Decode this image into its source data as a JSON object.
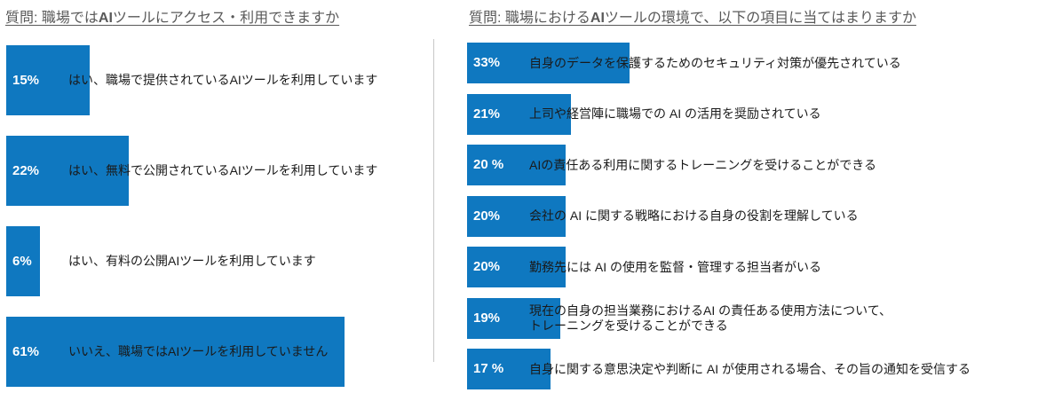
{
  "chart_data": [
    {
      "type": "bar",
      "orientation": "horizontal",
      "title": "質問: 職場ではAIツールにアクセス・利用できますか",
      "title_bold_term": "AI",
      "categories": [
        "はい、職場で提供されているAIツールを利用しています",
        "はい、無料で公開されているAIツールを利用しています",
        "はい、有料の公開AIツールを利用しています",
        "いいえ、職場ではAIツールを利用していません"
      ],
      "values": [
        15,
        22,
        6,
        61
      ],
      "value_labels": [
        "15%",
        "22%",
        "6%",
        "61%"
      ],
      "unit": "%",
      "xlim": [
        0,
        100
      ],
      "bar_color": "#0f78c0"
    },
    {
      "type": "bar",
      "orientation": "horizontal",
      "title": "質問: 職場におけるAIツールの環境で、以下の項目に当てはまりますか",
      "title_bold_term": "AI",
      "categories": [
        "自身のデータを保護するためのセキュリティ対策が優先されている",
        "上司や経営陣に職場での AI の活用を奨励されている",
        "AIの責任ある利用に関するトレーニングを受けることができる",
        "会社の AI に関する戦略における自身の役割を理解している",
        "勤務先には AI の使用を監督・管理する担当者がいる",
        "現在の自身の担当業務におけるAI の責任ある使用方法について、\nトレーニングを受けることができる",
        "自身に関する意思決定や判断に AI が使用される場合、その旨の通知を受信する"
      ],
      "values": [
        33,
        21,
        20,
        20,
        20,
        19,
        17
      ],
      "value_labels": [
        "33%",
        "21%",
        "20 %",
        "20%",
        "20%",
        "19%",
        "17 %"
      ],
      "unit": "%",
      "xlim": [
        0,
        100
      ],
      "bar_color": "#0f78c0"
    }
  ]
}
